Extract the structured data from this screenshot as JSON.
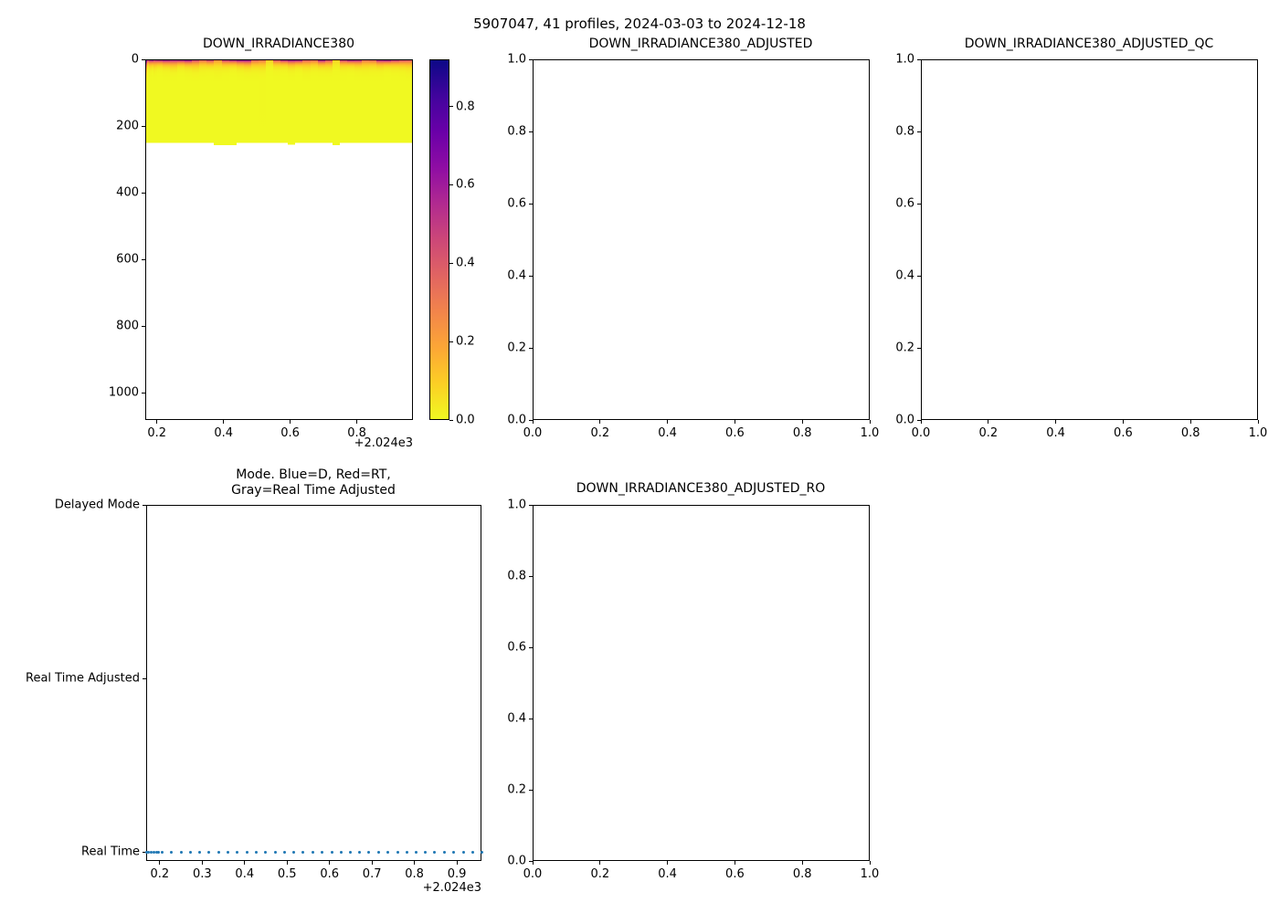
{
  "suptitle": "5907047, 41 profiles, 2024-03-03 to 2024-12-18",
  "colors": {
    "axis": "#000000",
    "dot_series": "#1f77b4",
    "cmap_low": "#f0f921",
    "cmap_high": "#0d0887"
  },
  "profiles": {
    "count": 41,
    "date_start": "2024-03-03",
    "date_end": "2024-12-18",
    "times": [
      2024.168,
      2024.174,
      2024.18,
      2024.186,
      2024.192,
      2024.198,
      2024.205,
      2024.228,
      2024.25,
      2024.272,
      2024.294,
      2024.316,
      2024.339,
      2024.361,
      2024.383,
      2024.405,
      2024.427,
      2024.449,
      2024.472,
      2024.494,
      2024.516,
      2024.538,
      2024.56,
      2024.582,
      2024.605,
      2024.627,
      2024.649,
      2024.671,
      2024.693,
      2024.715,
      2024.737,
      2024.76,
      2024.782,
      2024.804,
      2024.826,
      2024.848,
      2024.87,
      2024.893,
      2024.915,
      2024.937,
      2024.958
    ]
  },
  "chart_data": [
    {
      "type": "heatmap",
      "title": "DOWN_IRRADIANCE380",
      "colormap": "plasma reversed (0 = yellow, max = dark indigo)",
      "xlim": [
        2024.165,
        2024.9685
      ],
      "x_offset_label": "+2.024e3",
      "xtick_values": [
        2024.2,
        2024.4,
        2024.6,
        2024.8
      ],
      "xtick_labels": [
        "0.2",
        "0.4",
        "0.6",
        "0.8"
      ],
      "ylim": [
        1082,
        0
      ],
      "ytick_values": [
        0,
        200,
        400,
        600,
        800,
        1000
      ],
      "ytick_labels": [
        "0",
        "200",
        "400",
        "600",
        "800",
        "1000"
      ],
      "vmin": 0.0,
      "vmax": 0.92,
      "colorbar_tick_values": [
        0.0,
        0.2,
        0.4,
        0.6,
        0.8
      ],
      "colorbar_tick_labels": [
        "0.0",
        "0.2",
        "0.4",
        "0.6",
        "0.8"
      ],
      "surface_values": [
        0.88,
        0.75,
        0.82,
        0.9,
        0.7,
        0.78,
        0.85,
        0.86,
        0.78,
        0.88,
        0.9,
        0.62,
        0.5,
        0.68,
        0.32,
        0.72,
        0.85,
        0.9,
        0.86,
        0.5,
        0.42,
        0.15,
        0.6,
        0.82,
        0.88,
        0.9,
        0.52,
        0.48,
        0.85,
        0.62,
        0.12,
        0.7,
        0.88,
        0.8,
        0.45,
        0.5,
        0.82,
        0.9,
        0.72,
        0.6,
        0.55
      ],
      "efold_depth_m": [
        18,
        8,
        9,
        8,
        10,
        9,
        8,
        9,
        10,
        8,
        9,
        11,
        10,
        9,
        12,
        9,
        8,
        9,
        10,
        11,
        12,
        10,
        9,
        8,
        9,
        8,
        11,
        10,
        9,
        10,
        12,
        9,
        8,
        9,
        11,
        10,
        9,
        8,
        9,
        10,
        11
      ],
      "max_depth_m": [
        250,
        250,
        250,
        250,
        250,
        250,
        250,
        250,
        250,
        250,
        250,
        250,
        250,
        250,
        258,
        258,
        258,
        250,
        250,
        250,
        250,
        250,
        250,
        250,
        256,
        250,
        250,
        250,
        250,
        250,
        258,
        250,
        250,
        250,
        250,
        250,
        250,
        250,
        250,
        250,
        250
      ]
    },
    {
      "type": "empty",
      "title": "DOWN_IRRADIANCE380_ADJUSTED",
      "xtick_labels": [
        "0.0",
        "0.2",
        "0.4",
        "0.6",
        "0.8",
        "1.0"
      ],
      "ytick_labels": [
        "0.0",
        "0.2",
        "0.4",
        "0.6",
        "0.8",
        "1.0"
      ]
    },
    {
      "type": "empty",
      "title": "DOWN_IRRADIANCE380_ADJUSTED_QC",
      "xtick_labels": [
        "0.0",
        "0.2",
        "0.4",
        "0.6",
        "0.8",
        "1.0"
      ],
      "ytick_labels": [
        "0.0",
        "0.2",
        "0.4",
        "0.6",
        "0.8",
        "1.0"
      ]
    },
    {
      "type": "scatter",
      "title_line1": "Mode. Blue=D, Red=RT,",
      "title_line2": "Gray=Real Time Adjusted",
      "xlim": [
        2024.168,
        2024.958
      ],
      "x_offset_label": "+2.024e3",
      "xtick_values": [
        2024.2,
        2024.3,
        2024.4,
        2024.5,
        2024.6,
        2024.7,
        2024.8,
        2024.9
      ],
      "xtick_labels": [
        "0.2",
        "0.3",
        "0.4",
        "0.5",
        "0.6",
        "0.7",
        "0.8",
        "0.9"
      ],
      "ytick_labels": [
        "Delayed Mode",
        "Real Time Adjusted",
        "Real Time"
      ],
      "series": [
        {
          "name": "Real Time",
          "marker": "dot",
          "color": "#1f77b4",
          "y_category": "Real Time",
          "x": "profiles.times"
        }
      ]
    },
    {
      "type": "empty",
      "title": "DOWN_IRRADIANCE380_ADJUSTED_RO",
      "xtick_labels": [
        "0.0",
        "0.2",
        "0.4",
        "0.6",
        "0.8",
        "1.0"
      ],
      "ytick_labels": [
        "0.0",
        "0.2",
        "0.4",
        "0.6",
        "0.8",
        "1.0"
      ]
    }
  ]
}
